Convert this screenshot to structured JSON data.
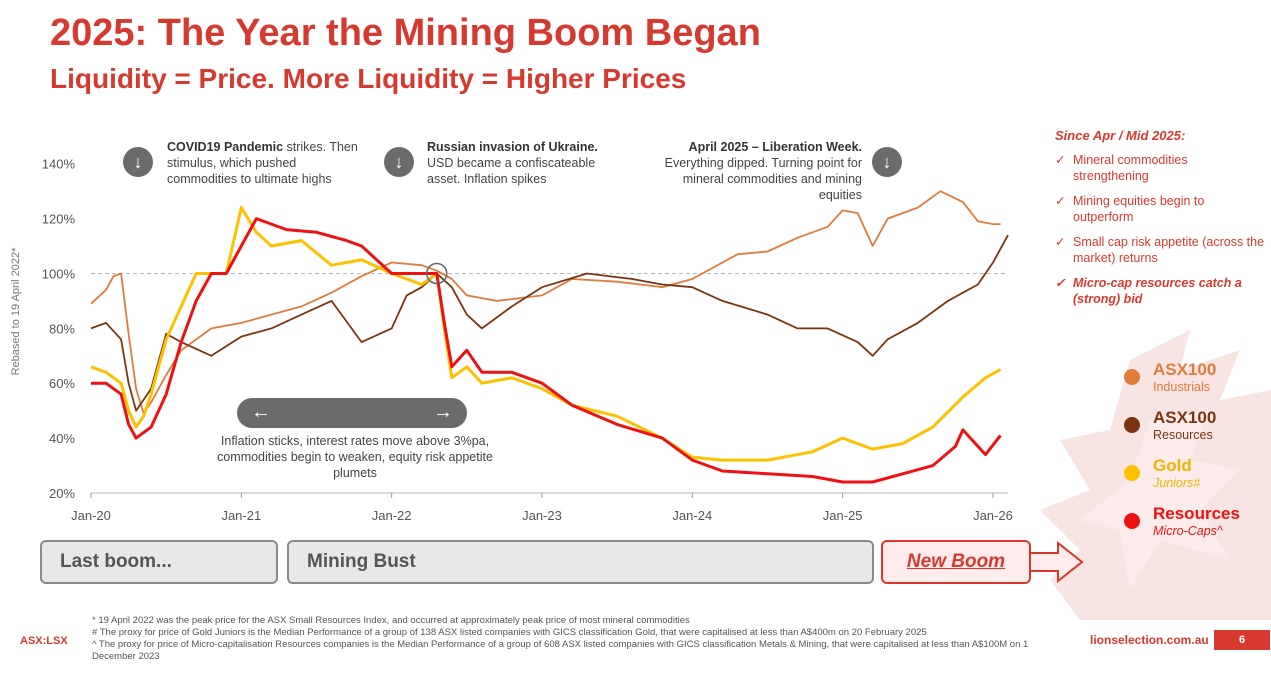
{
  "page": {
    "title": "2025: The Year the Mining Boom Began",
    "subtitle": "Liquidity = Price.  More Liquidity = Higher Prices",
    "ticker": "ASX:LSX",
    "website": "lionselection.com.au",
    "page_number": "6"
  },
  "annotations": [
    {
      "bold": "COVID19 Pandemic",
      "text": " strikes. Then stimulus, which pushed commodities to ultimate highs"
    },
    {
      "bold": "Russian invasion of Ukraine.",
      "text": " USD became a confiscateable asset.  Inflation spikes"
    },
    {
      "bold": "April 2025 – Liberation Week.",
      "text": " Everything dipped.  Turning point for mineral commodities and mining equities"
    }
  ],
  "bust_note": "Inflation sticks, interest rates move above 3%pa, commodities begin to weaken, equity risk appetite plumets",
  "phases": {
    "last_boom": "Last boom...",
    "mining_bust": "Mining Bust",
    "new_boom": "New Boom"
  },
  "sidebar": {
    "title": "Since Apr / Mid 2025:",
    "items": [
      "Mineral commodities strengthening",
      "Mining equities begin to outperform",
      "Small cap risk appetite (across the market) returns",
      "Micro-cap resources catch a (strong) bid"
    ]
  },
  "legend": [
    {
      "name": "ASX100",
      "sub": "Industrials",
      "color": "#e07b39"
    },
    {
      "name": "ASX100",
      "sub": "Resources",
      "color": "#7a3510"
    },
    {
      "name": "Gold",
      "sub": "Juniors#",
      "color": "#ffc000"
    },
    {
      "name": "Resources",
      "sub": "Micro-Caps^",
      "color": "#ee1111"
    }
  ],
  "footnotes": [
    "* 19 April 2022 was the peak price for the ASX Small Resources Index, and occurred at approximately peak price of most mineral commodities",
    "# The proxy for price of Gold Juniors is the Median Performance of a group of 138 ASX listed companies with GICS classification Gold, that were capitalised at less than A$400m on 20 February 2025",
    "^ The proxy for price of Micro-capitalisation Resources companies is the Median Performance of a group of 608 ASX listed companies with GICS classification Metals & Mining, that were capitalised at less than A$100M on 1 December 2023"
  ],
  "icons": {
    "check": "✓",
    "down": "↓",
    "left": "←",
    "right": "→"
  },
  "chart_data": {
    "type": "line",
    "title": "2025: The Year the Mining Boom Began",
    "xlabel": "",
    "ylabel": "Rebased to 19 April 2022*",
    "x_ticks": [
      "Jan-20",
      "Jan-21",
      "Jan-22",
      "Jan-23",
      "Jan-24",
      "Jan-25",
      "Jan-26"
    ],
    "xlim": [
      0,
      6.1
    ],
    "y_ticks": [
      "20%",
      "40%",
      "60%",
      "80%",
      "100%",
      "120%",
      "140%"
    ],
    "ylim": [
      20,
      145
    ],
    "reference_line": 100,
    "series": [
      {
        "name": "ASX100 Industrials",
        "color": "#e07b39",
        "x": [
          0,
          0.1,
          0.15,
          0.2,
          0.25,
          0.3,
          0.35,
          0.4,
          0.5,
          0.6,
          0.8,
          1.0,
          1.2,
          1.4,
          1.6,
          1.8,
          2.0,
          2.2,
          2.3,
          2.4,
          2.5,
          2.7,
          3.0,
          3.2,
          3.5,
          3.8,
          4.0,
          4.3,
          4.5,
          4.7,
          4.9,
          5.0,
          5.1,
          5.2,
          5.3,
          5.5,
          5.65,
          5.8,
          5.9,
          6.0,
          6.05
        ],
        "y": [
          89,
          94,
          99,
          100,
          78,
          58,
          49,
          53,
          63,
          72,
          80,
          82,
          85,
          88,
          93,
          99,
          104,
          103,
          101,
          98,
          92,
          90,
          92,
          98,
          97,
          95,
          98,
          107,
          108,
          113,
          117,
          123,
          122,
          110,
          120,
          124,
          130,
          126,
          119,
          118,
          118
        ]
      },
      {
        "name": "ASX100 Resources",
        "color": "#7a3510",
        "x": [
          0,
          0.1,
          0.2,
          0.25,
          0.3,
          0.4,
          0.5,
          0.6,
          0.8,
          1.0,
          1.2,
          1.4,
          1.6,
          1.8,
          2.0,
          2.1,
          2.2,
          2.3,
          2.4,
          2.5,
          2.6,
          2.8,
          3.0,
          3.3,
          3.6,
          3.8,
          4.0,
          4.2,
          4.5,
          4.7,
          4.9,
          5.1,
          5.2,
          5.3,
          5.5,
          5.7,
          5.9,
          6.0,
          6.1
        ],
        "y": [
          80,
          82,
          76,
          60,
          50,
          58,
          78,
          75,
          70,
          77,
          80,
          85,
          90,
          75,
          80,
          92,
          95,
          100,
          95,
          85,
          80,
          88,
          95,
          100,
          98,
          96,
          95,
          90,
          85,
          80,
          80,
          75,
          70,
          76,
          82,
          90,
          96,
          104,
          114
        ]
      },
      {
        "name": "Gold Juniors",
        "color": "#ffc000",
        "x": [
          0,
          0.1,
          0.2,
          0.25,
          0.3,
          0.35,
          0.4,
          0.5,
          0.6,
          0.7,
          0.8,
          0.9,
          1.0,
          1.1,
          1.2,
          1.4,
          1.6,
          1.8,
          2.0,
          2.2,
          2.3,
          2.35,
          2.4,
          2.5,
          2.6,
          2.8,
          3.0,
          3.2,
          3.5,
          3.8,
          4.0,
          4.2,
          4.5,
          4.8,
          5.0,
          5.2,
          5.4,
          5.6,
          5.8,
          5.95,
          6.05
        ],
        "y": [
          66,
          64,
          60,
          50,
          44,
          48,
          56,
          76,
          88,
          100,
          100,
          100,
          124,
          115,
          110,
          112,
          103,
          105,
          100,
          96,
          100,
          80,
          62,
          66,
          60,
          62,
          58,
          52,
          48,
          40,
          33,
          32,
          32,
          35,
          40,
          36,
          38,
          44,
          55,
          62,
          65
        ]
      },
      {
        "name": "Resources Micro-Caps",
        "color": "#ee1111",
        "x": [
          0,
          0.1,
          0.2,
          0.25,
          0.3,
          0.4,
          0.5,
          0.6,
          0.7,
          0.8,
          0.9,
          1.0,
          1.1,
          1.2,
          1.3,
          1.5,
          1.7,
          1.8,
          2.0,
          2.2,
          2.3,
          2.35,
          2.4,
          2.5,
          2.6,
          2.8,
          3.0,
          3.2,
          3.5,
          3.8,
          4.0,
          4.2,
          4.5,
          4.8,
          5.0,
          5.2,
          5.4,
          5.6,
          5.75,
          5.8,
          5.95,
          6.05
        ],
        "y": [
          60,
          60,
          56,
          45,
          40,
          44,
          56,
          75,
          90,
          100,
          100,
          110,
          120,
          118,
          116,
          115,
          112,
          110,
          100,
          100,
          100,
          82,
          66,
          72,
          64,
          64,
          60,
          52,
          45,
          40,
          32,
          28,
          27,
          26,
          24,
          24,
          27,
          30,
          37,
          43,
          34,
          41
        ]
      }
    ]
  }
}
